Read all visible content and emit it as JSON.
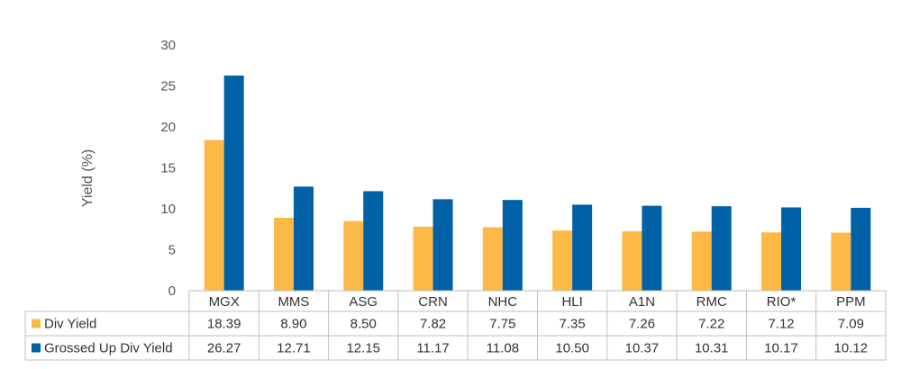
{
  "chart_data": {
    "type": "bar",
    "title": "",
    "xlabel": "",
    "ylabel": "Yield (%)",
    "ylim": [
      0,
      30
    ],
    "yticks": [
      0,
      5,
      10,
      15,
      20,
      25,
      30
    ],
    "grid": false,
    "legend": "data-table-left",
    "categories": [
      "MGX",
      "MMS",
      "ASG",
      "CRN",
      "NHC",
      "HLI",
      "A1N",
      "RMC",
      "RIO*",
      "PPM"
    ],
    "series": [
      {
        "name": "Div Yield",
        "color": "#FDB945",
        "values": [
          18.39,
          8.9,
          8.5,
          7.82,
          7.75,
          7.35,
          7.26,
          7.22,
          7.12,
          7.09
        ],
        "labels": [
          "18.39",
          "8.90",
          "8.50",
          "7.82",
          "7.75",
          "7.35",
          "7.26",
          "7.22",
          "7.12",
          "7.09"
        ]
      },
      {
        "name": "Grossed Up Div Yield",
        "color": "#0061A6",
        "values": [
          26.27,
          12.71,
          12.15,
          11.17,
          11.08,
          10.5,
          10.37,
          10.31,
          10.17,
          10.12
        ],
        "labels": [
          "26.27",
          "12.71",
          "12.15",
          "11.17",
          "11.08",
          "10.50",
          "10.37",
          "10.31",
          "10.17",
          "10.12"
        ]
      }
    ]
  }
}
